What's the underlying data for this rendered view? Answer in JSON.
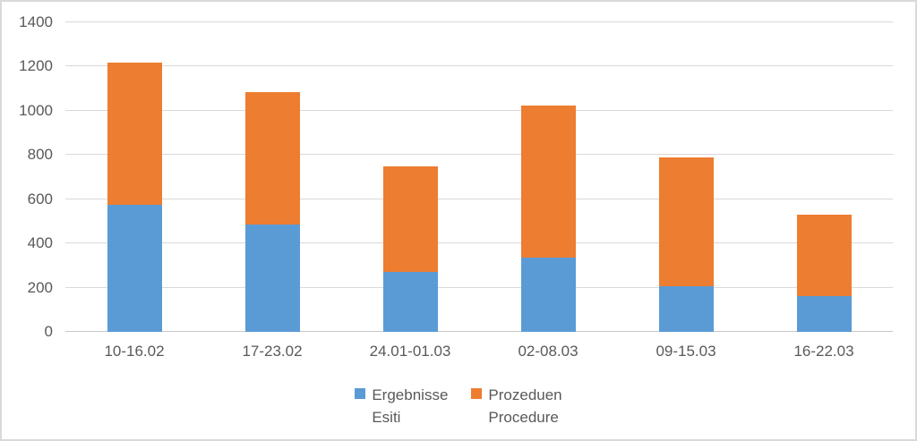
{
  "chart_data": {
    "type": "bar",
    "stacked": true,
    "title": "",
    "xlabel": "",
    "ylabel": "",
    "categories": [
      "10-16.02",
      "17-23.02",
      "24.01-01.03",
      "02-08.03",
      "09-15.03",
      "16-22.03"
    ],
    "series": [
      {
        "name": "Ergebnisse Esiti",
        "label_lines": [
          "Ergebnisse",
          "Esiti"
        ],
        "color": "#5B9BD5",
        "values": [
          575,
          485,
          270,
          335,
          205,
          160
        ]
      },
      {
        "name": "Prozeduen Procedure",
        "label_lines": [
          "Prozeduen",
          "Procedure"
        ],
        "color": "#ED7D31",
        "values": [
          645,
          600,
          480,
          690,
          585,
          370
        ]
      }
    ],
    "stack_totals": [
      1220,
      1085,
      750,
      1025,
      790,
      530
    ],
    "y_ticks": [
      0,
      200,
      400,
      600,
      800,
      1000,
      1200,
      1400
    ],
    "ylim": [
      0,
      1400
    ],
    "grid": true,
    "legend_position": "bottom"
  },
  "colors": {
    "series_blue": "#5B9BD5",
    "series_orange": "#ED7D31",
    "gridline": "#D9D9D9",
    "axis_line": "#C9C7C7",
    "tick_text": "#595959",
    "frame_border": "#D9D9D9",
    "background": "#FFFFFF"
  }
}
